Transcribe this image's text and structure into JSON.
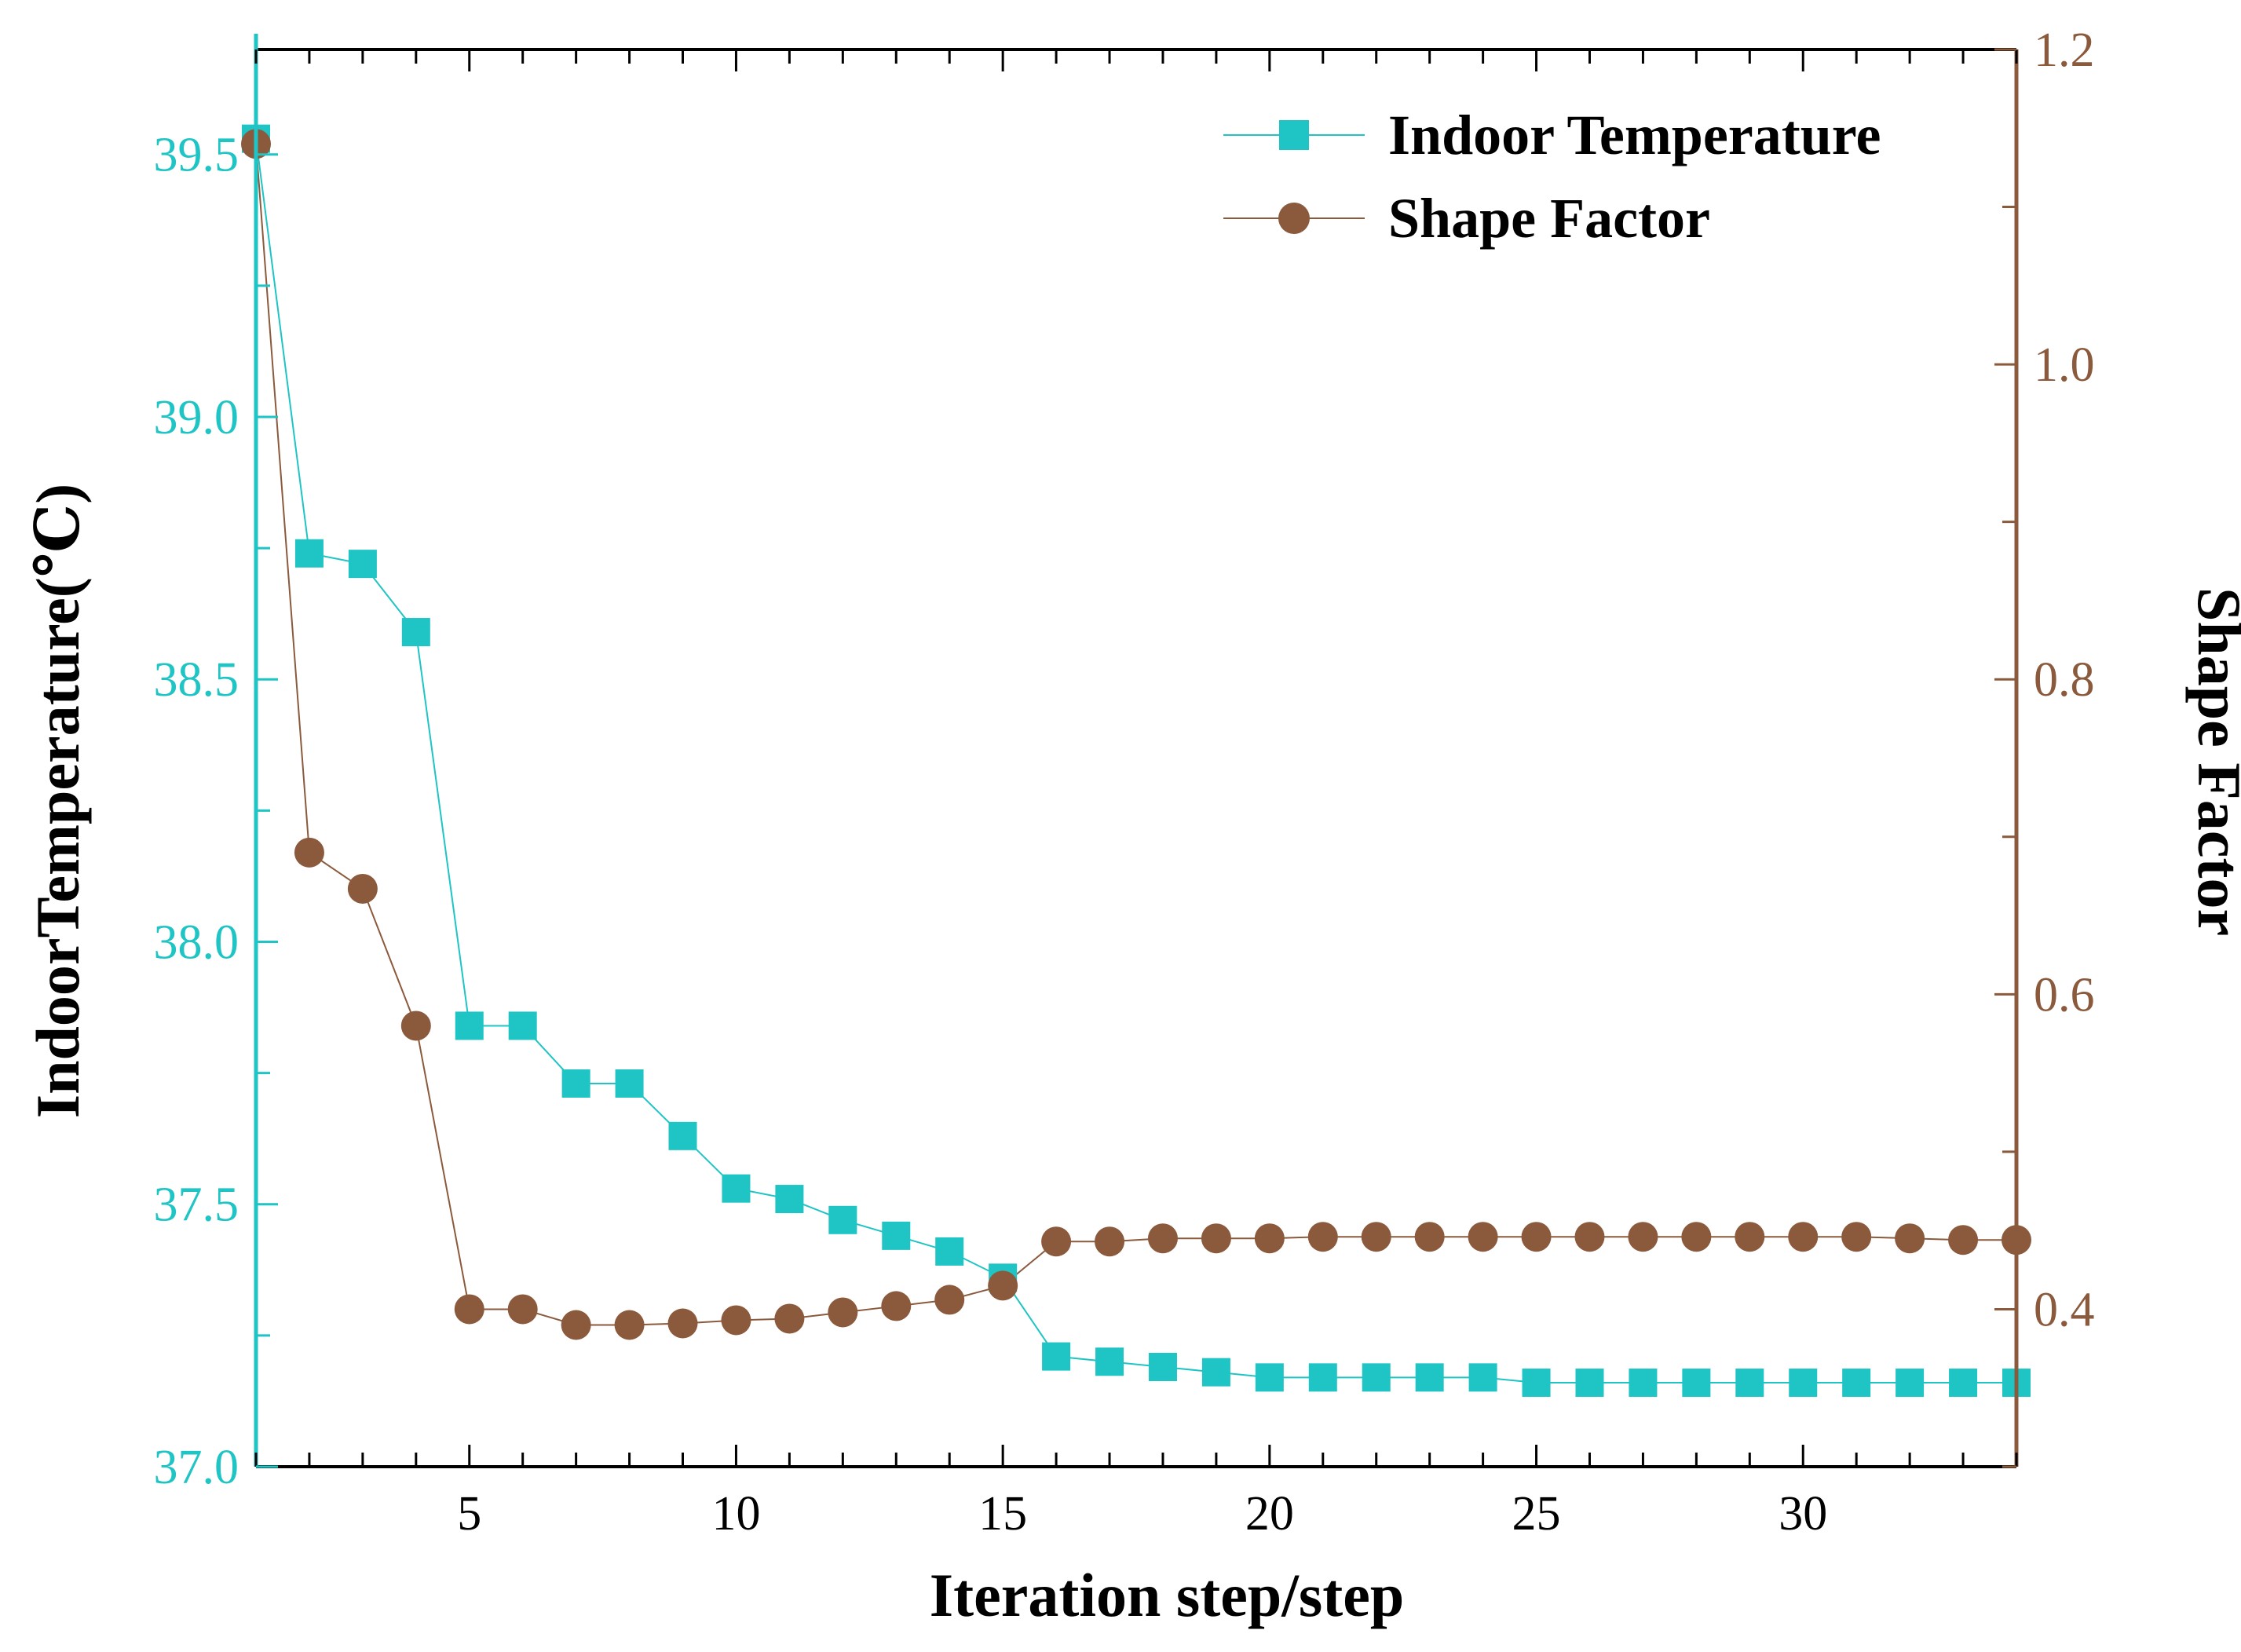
{
  "chart_data": {
    "type": "line",
    "title": "",
    "xlabel": "Iteration step/step",
    "ylabel_left": "IndoorTemperature(℃)",
    "ylabel_right": "Shape Factor",
    "xlim": [
      1,
      34
    ],
    "ylim_left": [
      37.0,
      39.7
    ],
    "ylim_right": [
      0.3,
      1.2
    ],
    "x_ticks": [
      "5",
      "10",
      "15",
      "20",
      "25",
      "30"
    ],
    "y_ticks_left": [
      "37.0",
      "37.5",
      "38.0",
      "38.5",
      "39.0",
      "39.5"
    ],
    "y_ticks_right": [
      "0.4",
      "0.6",
      "0.8",
      "1.0",
      "1.2"
    ],
    "grid": false,
    "legend_position": "top-right",
    "x": [
      1,
      2,
      3,
      4,
      5,
      6,
      7,
      8,
      9,
      10,
      11,
      12,
      13,
      14,
      15,
      16,
      17,
      18,
      19,
      20,
      21,
      22,
      23,
      24,
      25,
      26,
      27,
      28,
      29,
      30,
      31,
      32,
      33,
      34
    ],
    "series": [
      {
        "name": "Indoor Temperature",
        "axis": "left",
        "marker": "square",
        "color": "#1FC4C4",
        "values": [
          39.53,
          38.74,
          38.72,
          38.59,
          37.84,
          37.84,
          37.73,
          37.73,
          37.63,
          37.53,
          37.51,
          37.47,
          37.44,
          37.41,
          37.36,
          37.21,
          37.2,
          37.19,
          37.18,
          37.17,
          37.17,
          37.17,
          37.17,
          37.17,
          37.16,
          37.16,
          37.16,
          37.16,
          37.16,
          37.16,
          37.16,
          37.16,
          37.16,
          37.16
        ]
      },
      {
        "name": "Shape Factor",
        "axis": "right",
        "marker": "circle",
        "color": "#8B5A3C",
        "values": [
          1.14,
          0.69,
          0.667,
          0.58,
          0.4,
          0.4,
          0.39,
          0.39,
          0.391,
          0.393,
          0.394,
          0.398,
          0.402,
          0.406,
          0.415,
          0.443,
          0.443,
          0.445,
          0.445,
          0.445,
          0.446,
          0.446,
          0.446,
          0.446,
          0.446,
          0.446,
          0.446,
          0.446,
          0.446,
          0.446,
          0.446,
          0.445,
          0.444,
          0.444
        ]
      }
    ]
  }
}
